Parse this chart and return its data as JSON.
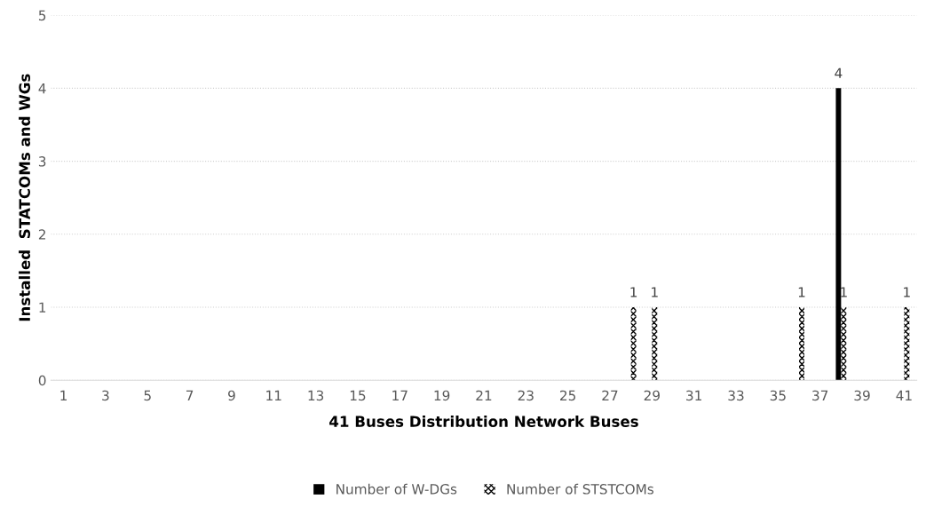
{
  "chart_data": {
    "type": "bar",
    "xlabel": "41 Buses Distribution Network Buses",
    "ylabel": "Installed  STATCOMs and WGs",
    "categories": [
      "1",
      null,
      "3",
      null,
      "5",
      null,
      "7",
      null,
      "9",
      null,
      "11",
      null,
      "13",
      null,
      "15",
      null,
      "17",
      null,
      "19",
      null,
      "21",
      null,
      "23",
      null,
      "25",
      null,
      "27",
      null,
      "29",
      null,
      "31",
      null,
      "33",
      null,
      "35",
      null,
      "37",
      null,
      "39",
      null,
      "41"
    ],
    "series": [
      {
        "name": "Number of W-DGs",
        "color": "#000000",
        "values": [
          0,
          0,
          0,
          0,
          0,
          0,
          0,
          0,
          0,
          0,
          0,
          0,
          0,
          0,
          0,
          0,
          0,
          0,
          0,
          0,
          0,
          0,
          0,
          0,
          0,
          0,
          0,
          0,
          0,
          0,
          0,
          0,
          0,
          0,
          0,
          0,
          0,
          4,
          0,
          0,
          0
        ],
        "value_labels": [
          null,
          null,
          null,
          null,
          null,
          null,
          null,
          null,
          null,
          null,
          null,
          null,
          null,
          null,
          null,
          null,
          null,
          null,
          null,
          null,
          null,
          null,
          null,
          null,
          null,
          null,
          null,
          null,
          null,
          null,
          null,
          null,
          null,
          null,
          null,
          null,
          null,
          "4",
          null,
          null,
          null
        ]
      },
      {
        "name": "Number of STSTCOMs",
        "color": "#000000",
        "values": [
          0,
          0,
          0,
          0,
          0,
          0,
          0,
          0,
          0,
          0,
          0,
          0,
          0,
          0,
          0,
          0,
          0,
          0,
          0,
          0,
          0,
          0,
          0,
          0,
          0,
          0,
          0,
          1,
          1,
          0,
          0,
          0,
          0,
          0,
          0,
          1,
          0,
          1,
          0,
          0,
          1
        ],
        "value_labels": [
          null,
          null,
          null,
          null,
          null,
          null,
          null,
          null,
          null,
          null,
          null,
          null,
          null,
          null,
          null,
          null,
          null,
          null,
          null,
          null,
          null,
          null,
          null,
          null,
          null,
          null,
          null,
          "1",
          "1",
          null,
          null,
          null,
          null,
          null,
          null,
          "1",
          null,
          "1",
          null,
          null,
          "1"
        ]
      }
    ],
    "ylim": [
      0,
      5
    ],
    "yticks": [
      0,
      1,
      2,
      3,
      4,
      5
    ],
    "grid": "y",
    "legend": "bottom"
  }
}
